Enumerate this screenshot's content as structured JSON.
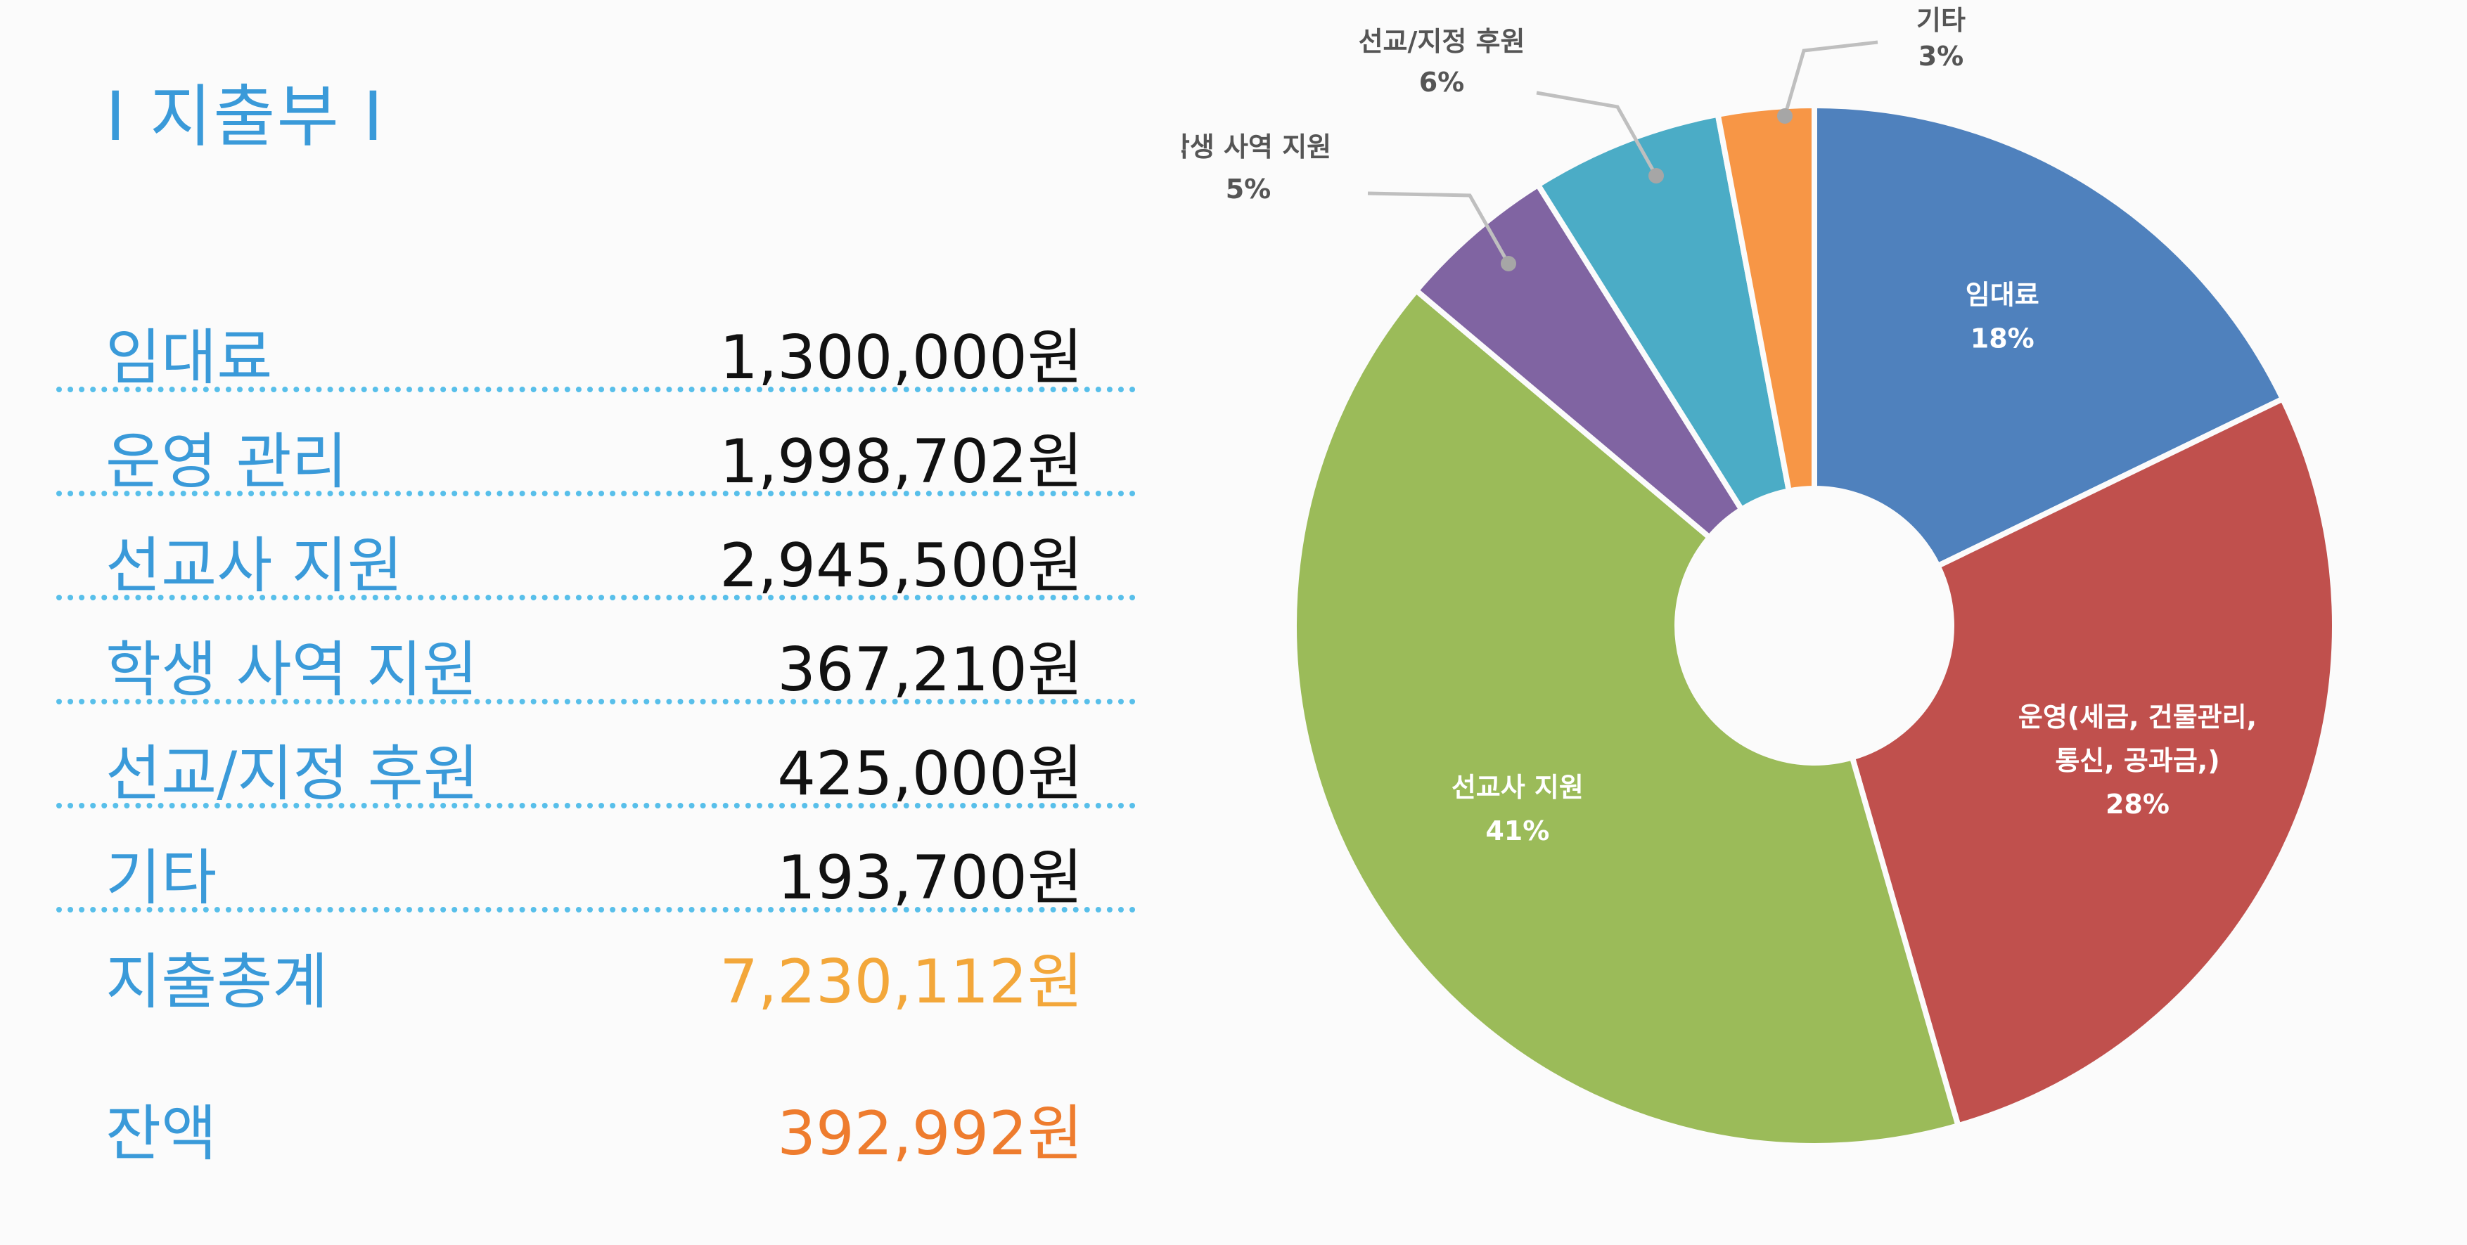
{
  "heading": "I 지출부 I",
  "expenses": [
    {
      "label": "임대료",
      "amount": "1,300,000원"
    },
    {
      "label": "운영 관리",
      "amount": "1,998,702원"
    },
    {
      "label": "선교사 지원",
      "amount": "2,945,500원"
    },
    {
      "label": "학생 사역 지원",
      "amount": "367,210원"
    },
    {
      "label": "선교/지정 후원",
      "amount": "425,000원"
    },
    {
      "label": "기타",
      "amount": "193,700원"
    }
  ],
  "total": {
    "label": "지출총계",
    "amount": "7,230,112원"
  },
  "balance": {
    "label": "잔액",
    "amount": "392,992원"
  },
  "colors": {
    "heading": "#3a9ad9",
    "divider": "#58bfea",
    "total": "#f3a73a",
    "balance": "#ee7c2e"
  },
  "chart_data": {
    "type": "pie",
    "donut": true,
    "slices": [
      {
        "lines": [
          "임대료"
        ],
        "percent_label": "18%",
        "value": 18,
        "color": "#4f81bd",
        "label_position": "inside"
      },
      {
        "lines": [
          "운영(세금, 건물관리,",
          "통신, 공과금,)"
        ],
        "percent_label": "28%",
        "value": 28,
        "color": "#c0504d",
        "label_position": "inside"
      },
      {
        "lines": [
          "선교사 지원"
        ],
        "percent_label": "41%",
        "value": 41,
        "color": "#9bbb59",
        "label_position": "inside"
      },
      {
        "lines": [
          "학생 사역 지원"
        ],
        "percent_label": "5%",
        "value": 5,
        "color": "#8064a2",
        "label_position": "outside"
      },
      {
        "lines": [
          "선교/지정 후원"
        ],
        "percent_label": "6%",
        "value": 6,
        "color": "#4bacc6",
        "label_position": "outside"
      },
      {
        "lines": [
          "기타"
        ],
        "percent_label": "3%",
        "value": 3,
        "color": "#f79646",
        "label_position": "outside"
      }
    ]
  }
}
